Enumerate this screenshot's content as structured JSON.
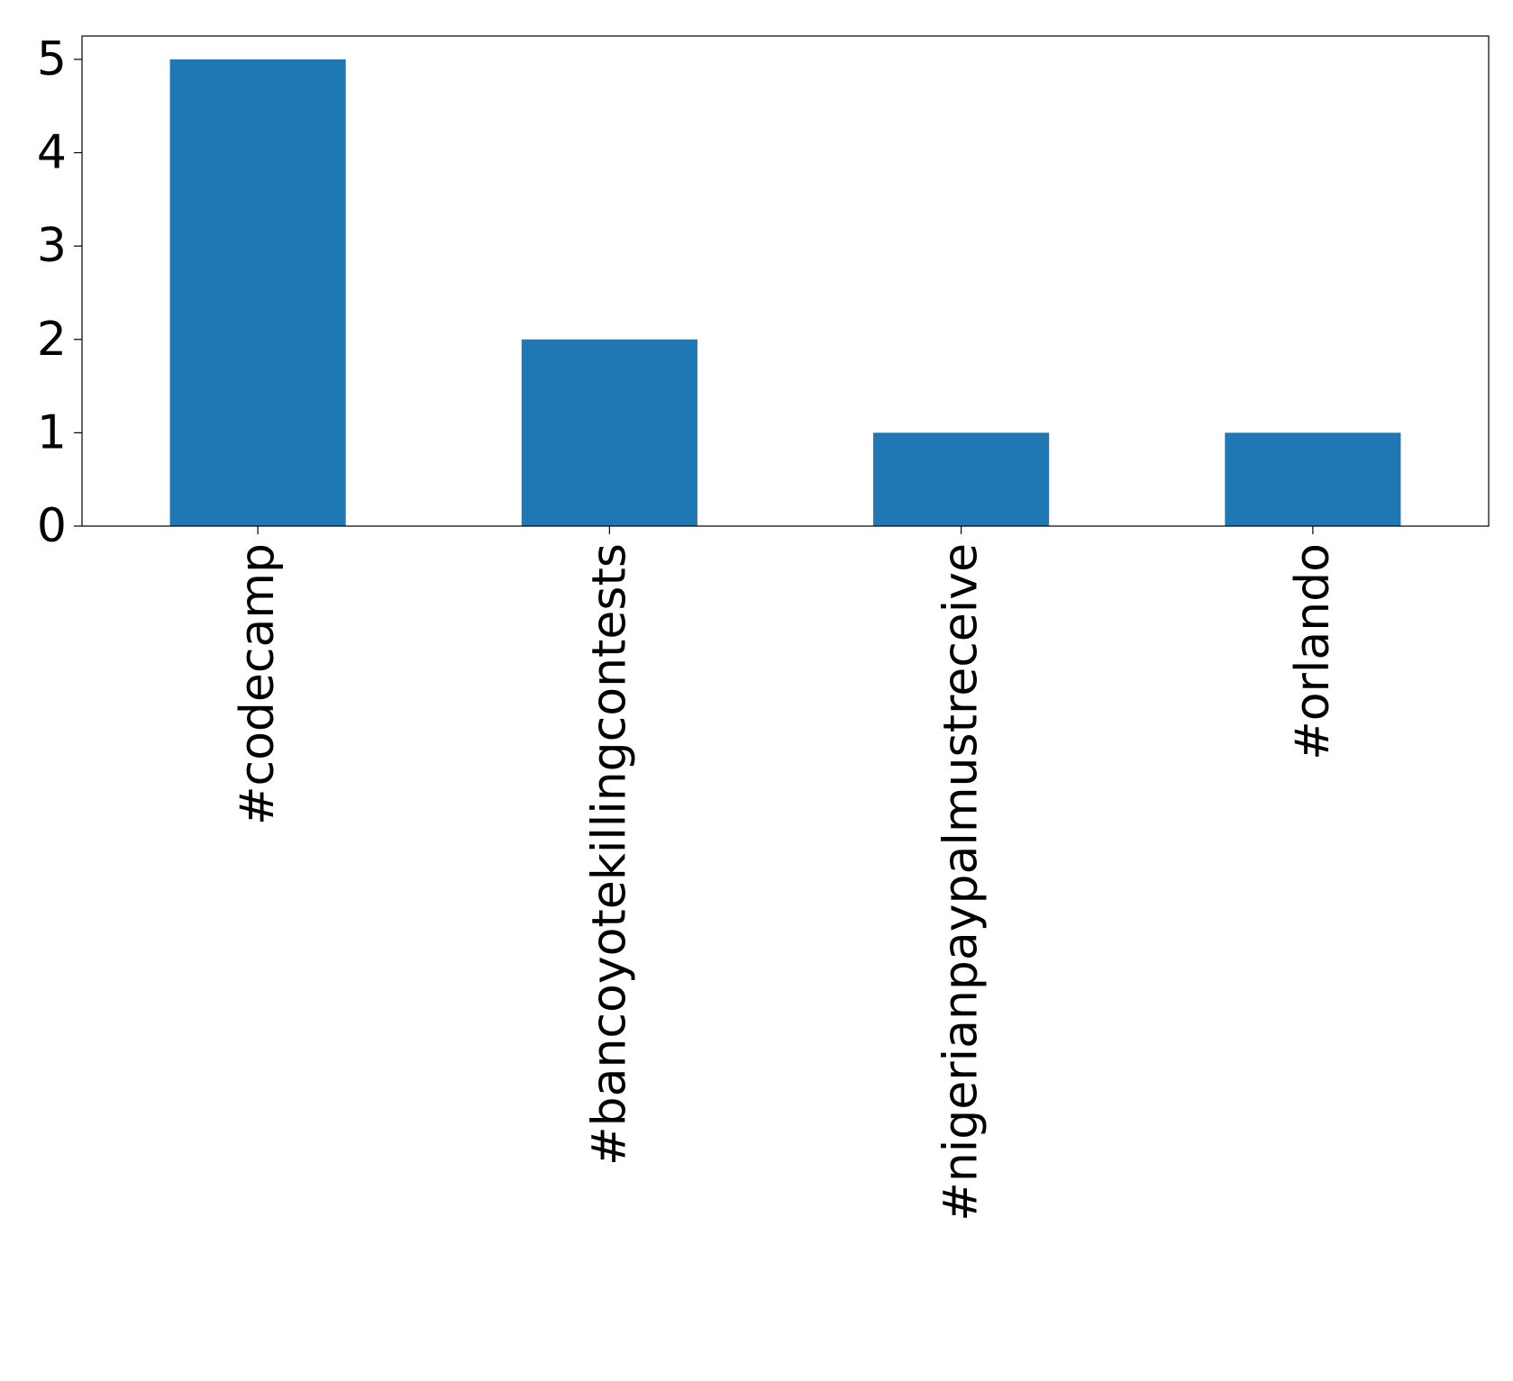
{
  "chart_data": {
    "type": "bar",
    "title": "",
    "xlabel": "",
    "ylabel": "",
    "categories": [
      "#codecamp",
      "#bancoyotekillingcontests",
      "#nigerianpaypalmustreceive",
      "#orlando"
    ],
    "values": [
      5,
      2,
      1,
      1
    ],
    "ylim": [
      0,
      5.25
    ],
    "yticks": [
      0,
      1,
      2,
      3,
      4,
      5
    ],
    "grid": false,
    "legend": "none",
    "bar_color": "#1f77b4",
    "axis_color": "#000000"
  }
}
